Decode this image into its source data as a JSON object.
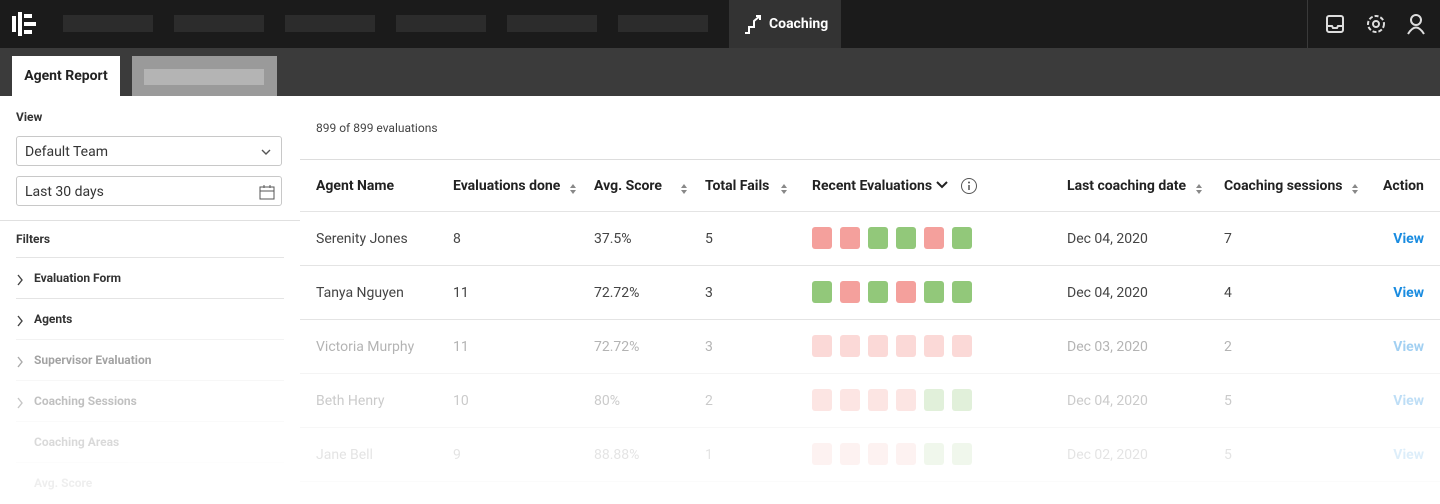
{
  "nav": {
    "active_tab": "Coaching"
  },
  "tabs": [
    "Agent Report"
  ],
  "sidebar": {
    "view_label": "View",
    "team_select": "Default Team",
    "date_select": "Last 30 days",
    "filters_label": "Filters",
    "filters": [
      "Evaluation Form",
      "Agents",
      "Supervisor Evaluation",
      "Coaching Sessions",
      "Coaching Areas",
      "Avg. Score"
    ]
  },
  "summary": "899 of 899 evaluations",
  "table": {
    "columns": [
      "Agent Name",
      "Evaluations done",
      "Avg. Score",
      "Total Fails",
      "Recent Evaluations",
      "Last coaching date",
      "Coaching sessions",
      "Action"
    ],
    "rows": [
      {
        "cells": [
          "Serenity Jones",
          "8",
          "37.5%",
          "5",
          "Dec 04, 2020",
          "7",
          "View"
        ],
        "recent": [
          "#f4a09c",
          "#f4a09c",
          "#92c87a",
          "#92c87a",
          "#f4a09c",
          "#92c87a"
        ]
      },
      {
        "cells": [
          "Tanya Nguyen",
          "11",
          "72.72%",
          "3",
          "Dec 04, 2020",
          "4",
          "View"
        ],
        "recent": [
          "#92c87a",
          "#f4a09c",
          "#92c87a",
          "#f4a09c",
          "#92c87a",
          "#92c87a"
        ]
      },
      {
        "cells": [
          "Victoria Murphy",
          "11",
          "72.72%",
          "3",
          "Dec 03, 2020",
          "2",
          "View"
        ],
        "recent": [
          "#f4a09c",
          "#f4a09c",
          "#f4a09c",
          "#f4a09c",
          "#f4a09c",
          "#f4a09c"
        ]
      },
      {
        "cells": [
          "Beth Henry",
          "10",
          "80%",
          "2",
          "Dec 04, 2020",
          "5",
          "View"
        ],
        "recent": [
          "#f4a09c",
          "#f4a09c",
          "#f4a09c",
          "#f4a09c",
          "#92c87a",
          "#92c87a"
        ]
      },
      {
        "cells": [
          "Jane Bell",
          "9",
          "88.88%",
          "1",
          "Dec 02, 2020",
          "5",
          "View"
        ],
        "recent": [
          "#f4a09c",
          "#f4a09c",
          "#f4a09c",
          "#f4a09c",
          "#92c87a",
          "#92c87a"
        ]
      }
    ]
  }
}
